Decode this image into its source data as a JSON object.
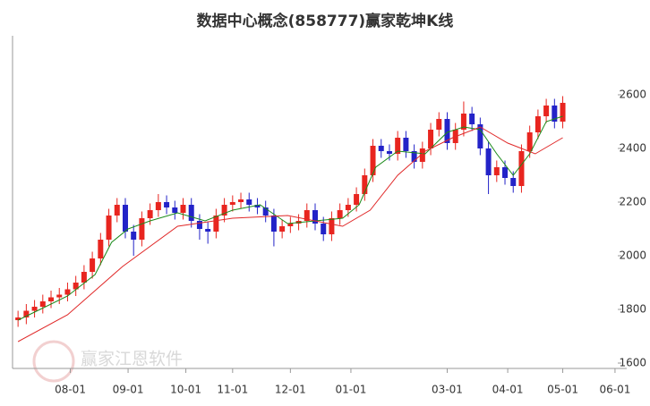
{
  "chart_data": {
    "type": "candlestick",
    "title": "数据中心概念(858777)赢家乾坤K线",
    "watermark": "赢家江恩软件",
    "x": [
      2,
      5,
      8,
      11,
      14,
      17,
      20,
      23,
      26,
      29,
      32,
      35,
      38,
      41,
      44,
      47,
      50,
      53,
      56,
      59,
      62,
      65,
      68,
      71,
      74,
      77,
      80,
      83,
      86,
      89,
      92,
      95,
      98,
      101,
      104,
      107,
      110,
      113,
      116,
      119,
      122,
      125,
      128,
      131,
      134,
      137,
      140,
      143,
      146,
      149,
      152,
      155,
      158,
      161,
      164,
      167,
      170,
      173,
      176,
      179,
      182,
      185,
      188,
      191,
      194,
      197,
      200
    ],
    "open": [
      1760,
      1770,
      1795,
      1810,
      1830,
      1845,
      1855,
      1875,
      1900,
      1940,
      1990,
      2060,
      2150,
      2190,
      2090,
      2060,
      2140,
      2170,
      2200,
      2180,
      2160,
      2190,
      2130,
      2100,
      2090,
      2150,
      2190,
      2200,
      2210,
      2190,
      2180,
      2150,
      2090,
      2110,
      2120,
      2130,
      2170,
      2120,
      2080,
      2140,
      2170,
      2190,
      2230,
      2300,
      2410,
      2390,
      2380,
      2440,
      2390,
      2350,
      2400,
      2470,
      2510,
      2420,
      2470,
      2530,
      2490,
      2400,
      2300,
      2330,
      2290,
      2260,
      2390,
      2460,
      2520,
      2560,
      2500
    ],
    "high": [
      1795,
      1820,
      1835,
      1855,
      1870,
      1880,
      1900,
      1925,
      1965,
      2015,
      2085,
      2175,
      2215,
      2215,
      2115,
      2165,
      2195,
      2230,
      2225,
      2205,
      2215,
      2215,
      2155,
      2125,
      2175,
      2215,
      2225,
      2235,
      2235,
      2215,
      2205,
      2175,
      2135,
      2145,
      2155,
      2195,
      2195,
      2145,
      2165,
      2195,
      2215,
      2255,
      2325,
      2435,
      2435,
      2415,
      2465,
      2465,
      2415,
      2425,
      2495,
      2535,
      2535,
      2495,
      2575,
      2555,
      2515,
      2425,
      2355,
      2355,
      2315,
      2415,
      2485,
      2545,
      2585,
      2585,
      2595
    ],
    "low": [
      1735,
      1745,
      1770,
      1785,
      1805,
      1820,
      1830,
      1850,
      1875,
      1915,
      1965,
      2035,
      2125,
      2065,
      2000,
      2035,
      2115,
      2145,
      2155,
      2135,
      2135,
      2105,
      2060,
      2045,
      2065,
      2125,
      2165,
      2175,
      2165,
      2155,
      2125,
      2035,
      2065,
      2085,
      2095,
      2105,
      2095,
      2055,
      2055,
      2115,
      2145,
      2165,
      2205,
      2275,
      2365,
      2355,
      2355,
      2365,
      2325,
      2325,
      2375,
      2445,
      2395,
      2395,
      2445,
      2465,
      2375,
      2230,
      2275,
      2265,
      2235,
      2235,
      2365,
      2435,
      2495,
      2475,
      2475
    ],
    "close": [
      1770,
      1795,
      1810,
      1830,
      1845,
      1855,
      1875,
      1900,
      1940,
      1990,
      2060,
      2150,
      2190,
      2090,
      2060,
      2140,
      2170,
      2200,
      2180,
      2160,
      2190,
      2130,
      2100,
      2090,
      2150,
      2190,
      2200,
      2210,
      2190,
      2180,
      2150,
      2090,
      2110,
      2120,
      2130,
      2170,
      2120,
      2080,
      2140,
      2170,
      2190,
      2230,
      2300,
      2410,
      2390,
      2380,
      2440,
      2390,
      2350,
      2400,
      2470,
      2510,
      2420,
      2470,
      2530,
      2490,
      2400,
      2300,
      2330,
      2290,
      2260,
      2390,
      2460,
      2520,
      2560,
      2500,
      2570
    ],
    "up_color": "#e8251f",
    "down_color": "#2323c8",
    "lines": [
      {
        "color": "#1a8a1a",
        "x": [
          2,
          10,
          20,
          30,
          36,
          42,
          50,
          60,
          70,
          80,
          90,
          100,
          110,
          120,
          126,
          132,
          140,
          150,
          158,
          164,
          170,
          176,
          182,
          188,
          194,
          200
        ],
        "values": [
          1760,
          1800,
          1850,
          1930,
          2050,
          2100,
          2130,
          2160,
          2130,
          2170,
          2190,
          2120,
          2130,
          2140,
          2190,
          2330,
          2390,
          2380,
          2460,
          2480,
          2470,
          2380,
          2300,
          2380,
          2500,
          2520
        ]
      },
      {
        "color": "#e02828",
        "x": [
          2,
          20,
          40,
          60,
          80,
          100,
          120,
          130,
          140,
          150,
          160,
          170,
          180,
          190,
          200
        ],
        "values": [
          1680,
          1780,
          1960,
          2110,
          2140,
          2150,
          2110,
          2170,
          2300,
          2390,
          2440,
          2480,
          2420,
          2380,
          2440
        ]
      }
    ],
    "xlim": [
      0,
      220
    ],
    "xticks": [
      {
        "value": 21,
        "label": "08-01"
      },
      {
        "value": 42,
        "label": "09-01"
      },
      {
        "value": 63,
        "label": "10-01"
      },
      {
        "value": 80,
        "label": "11-01"
      },
      {
        "value": 101,
        "label": "12-01"
      },
      {
        "value": 123,
        "label": "01-01"
      },
      {
        "value": 158,
        "label": "03-01"
      },
      {
        "value": 180,
        "label": "04-01"
      },
      {
        "value": 200,
        "label": "05-01"
      },
      {
        "value": 219,
        "label": "06-01"
      }
    ],
    "ylim": [
      1580,
      2820
    ],
    "yticks": [
      1600,
      1800,
      2000,
      2200,
      2400,
      2600
    ]
  }
}
